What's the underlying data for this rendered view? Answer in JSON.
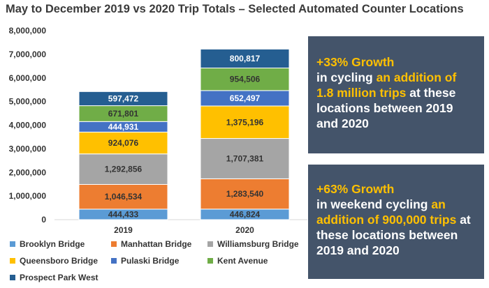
{
  "title": "May to December 2019 vs 2020 Trip Totals – Selected Automated Counter Locations",
  "chart_data": {
    "type": "bar",
    "stacked": true,
    "title": "May to December 2019 vs 2020 Trip Totals – Selected Automated Counter Locations",
    "categories": [
      "2019",
      "2020"
    ],
    "ylim": [
      0,
      8000000
    ],
    "yticks": [
      "0",
      "1,000,000",
      "2,000,000",
      "3,000,000",
      "4,000,000",
      "5,000,000",
      "6,000,000",
      "7,000,000",
      "8,000,000"
    ],
    "ytick_values": [
      0,
      1000000,
      2000000,
      3000000,
      4000000,
      5000000,
      6000000,
      7000000,
      8000000
    ],
    "grid": false,
    "legend_position": "bottom",
    "series": [
      {
        "name": "Brooklyn Bridge",
        "color": "#5b9bd5",
        "label_color": "#333333",
        "values": [
          444433,
          446824
        ],
        "labels": [
          "444,433",
          "446,824"
        ]
      },
      {
        "name": "Manhattan Bridge",
        "color": "#ed7d31",
        "label_color": "#333333",
        "values": [
          1046534,
          1283540
        ],
        "labels": [
          "1,046,534",
          "1,283,540"
        ]
      },
      {
        "name": "Williamsburg Bridge",
        "color": "#a5a5a5",
        "label_color": "#333333",
        "values": [
          1292856,
          1707381
        ],
        "labels": [
          "1,292,856",
          "1,707,381"
        ]
      },
      {
        "name": "Queensboro Bridge",
        "color": "#ffc000",
        "label_color": "#333333",
        "values": [
          924076,
          1375196
        ],
        "labels": [
          "924,076",
          "1,375,196"
        ]
      },
      {
        "name": "Pulaski Bridge",
        "color": "#4472c4",
        "label_color": "#ffffff",
        "values": [
          444931,
          652497
        ],
        "labels": [
          "444,931",
          "652,497"
        ]
      },
      {
        "name": "Kent Avenue",
        "color": "#70ad47",
        "label_color": "#333333",
        "values": [
          671801,
          954506
        ],
        "labels": [
          "671,801",
          "954,506"
        ]
      },
      {
        "name": "Prospect Park West",
        "color": "#255e91",
        "label_color": "#ffffff",
        "values": [
          597472,
          800817
        ],
        "labels": [
          "597,472",
          "800,817"
        ]
      }
    ]
  },
  "callouts": [
    {
      "headline": "+33% Growth",
      "text_before": "in cycling ",
      "highlight": "an addition of 1.8 million trips",
      "text_after": " at these locations between 2019 and 2020"
    },
    {
      "headline": "+63% Growth",
      "text_before": "in weekend cycling ",
      "highlight": "an addition of 900,000 trips",
      "text_after": " at these locations between 2019 and 2020"
    }
  ]
}
